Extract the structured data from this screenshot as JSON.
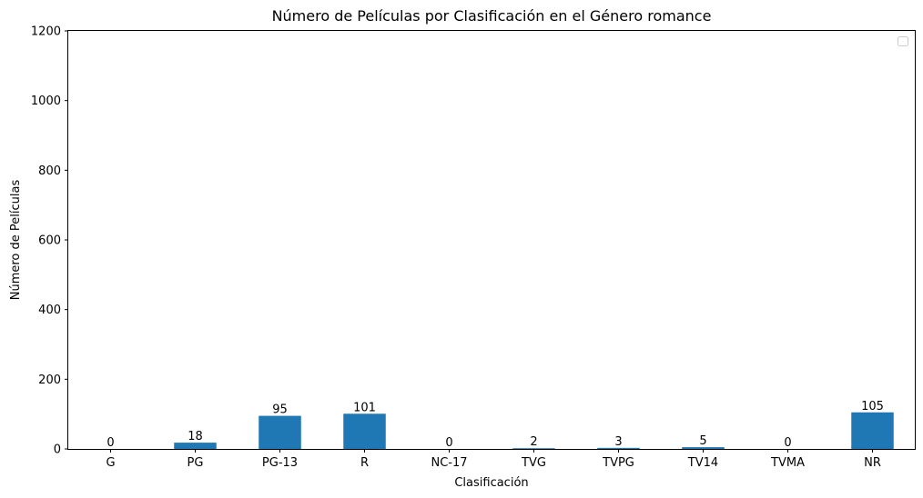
{
  "chart_data": {
    "type": "bar",
    "title": "Número de Películas por Clasificación en el Género romance",
    "xlabel": "Clasificación",
    "ylabel": "Número de Películas",
    "categories": [
      "G",
      "PG",
      "PG-13",
      "R",
      "NC-17",
      "TVG",
      "TVPG",
      "TV14",
      "TVMA",
      "NR"
    ],
    "values": [
      0,
      18,
      95,
      101,
      0,
      2,
      3,
      5,
      0,
      105
    ],
    "data_labels": [
      "0",
      "18",
      "95",
      "101",
      "0",
      "2",
      "3",
      "5",
      "0",
      "105"
    ],
    "ylim": [
      0,
      1200
    ],
    "yticks": [
      0,
      200,
      400,
      600,
      800,
      1000,
      1200
    ],
    "ytick_labels": [
      "0",
      "200",
      "400",
      "600",
      "800",
      "1000",
      "1200"
    ],
    "grid": false,
    "legend": {
      "placement": "top-right",
      "entries": []
    },
    "bar_color": "#1f77b4"
  }
}
